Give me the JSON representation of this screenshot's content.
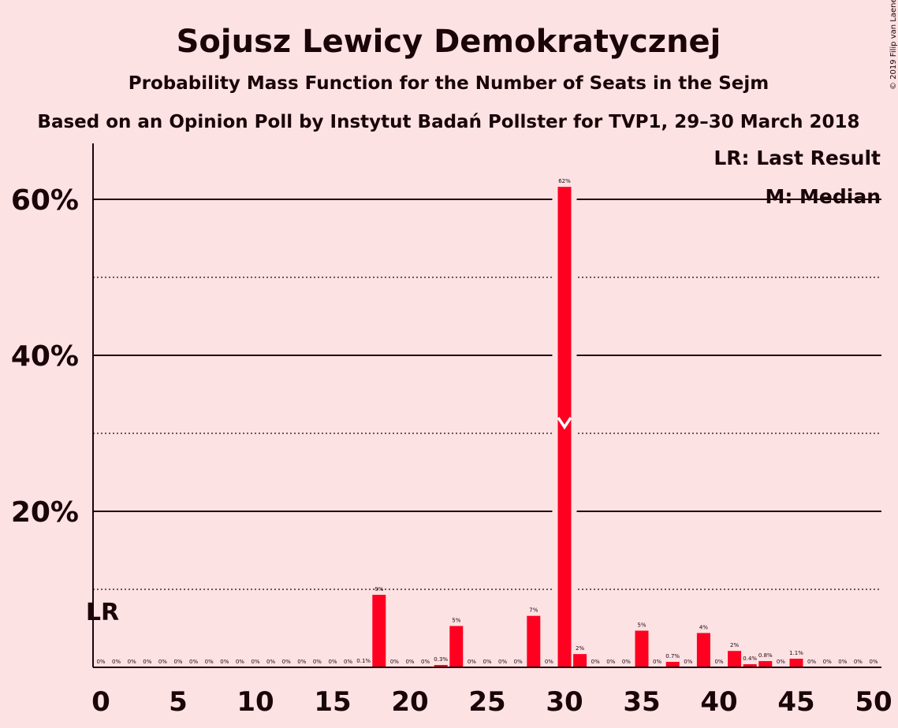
{
  "chart_data": {
    "type": "bar",
    "title": "Sojusz Lewicy Demokratycznej",
    "subtitle": "Probability Mass Function for the Number of Seats in the Sejm",
    "subtitle2": "Based on an Opinion Poll by Instytut Badań Pollster for TVP1, 29–30 March 2018",
    "copyright": "© 2019 Filip van Laenen",
    "legend": {
      "lr": "LR: Last Result",
      "m": "M: Median",
      "placement": "top-right"
    },
    "last_result_marker": "LR",
    "last_result_seats": 0,
    "median_seats": 30,
    "xlim": [
      0,
      50
    ],
    "ylim": [
      0,
      67
    ],
    "x_ticks": [
      0,
      5,
      10,
      15,
      20,
      25,
      30,
      35,
      40,
      45,
      50
    ],
    "y_ticks": [
      20,
      40,
      60
    ],
    "y_tick_labels": [
      "20%",
      "40%",
      "60%"
    ],
    "bar_color": "#ff0020",
    "x": [
      0,
      1,
      2,
      3,
      4,
      5,
      6,
      7,
      8,
      9,
      10,
      11,
      12,
      13,
      14,
      15,
      16,
      17,
      18,
      19,
      20,
      21,
      22,
      23,
      24,
      25,
      26,
      27,
      28,
      29,
      30,
      31,
      32,
      33,
      34,
      35,
      36,
      37,
      38,
      39,
      40,
      41,
      42,
      43,
      44,
      45,
      46,
      47,
      48,
      49,
      50
    ],
    "values": [
      0,
      0,
      0,
      0,
      0,
      0,
      0,
      0,
      0,
      0,
      0,
      0,
      0,
      0,
      0,
      0,
      0,
      0.1,
      9.3,
      0,
      0,
      0,
      0.3,
      5.3,
      0,
      0,
      0,
      0,
      6.6,
      0,
      61.6,
      1.7,
      0,
      0,
      0,
      4.7,
      0,
      0.7,
      0,
      4.4,
      0,
      2.1,
      0.4,
      0.8,
      0,
      1.1,
      0,
      0,
      0,
      0,
      0
    ],
    "labels": [
      "0%",
      "0%",
      "0%",
      "0%",
      "0%",
      "0%",
      "0%",
      "0%",
      "0%",
      "0%",
      "0%",
      "0%",
      "0%",
      "0%",
      "0%",
      "0%",
      "0%",
      "0.1%",
      "9%",
      "0%",
      "0%",
      "0%",
      "0.3%",
      "5%",
      "0%",
      "0%",
      "0%",
      "0%",
      "7%",
      "0%",
      "62%",
      "2%",
      "0%",
      "0%",
      "0%",
      "5%",
      "0%",
      "0.7%",
      "0%",
      "4%",
      "0%",
      "2%",
      "0.4%",
      "0.8%",
      "0%",
      "1.1%",
      "0%",
      "0%",
      "0%",
      "0%",
      "0%"
    ]
  }
}
